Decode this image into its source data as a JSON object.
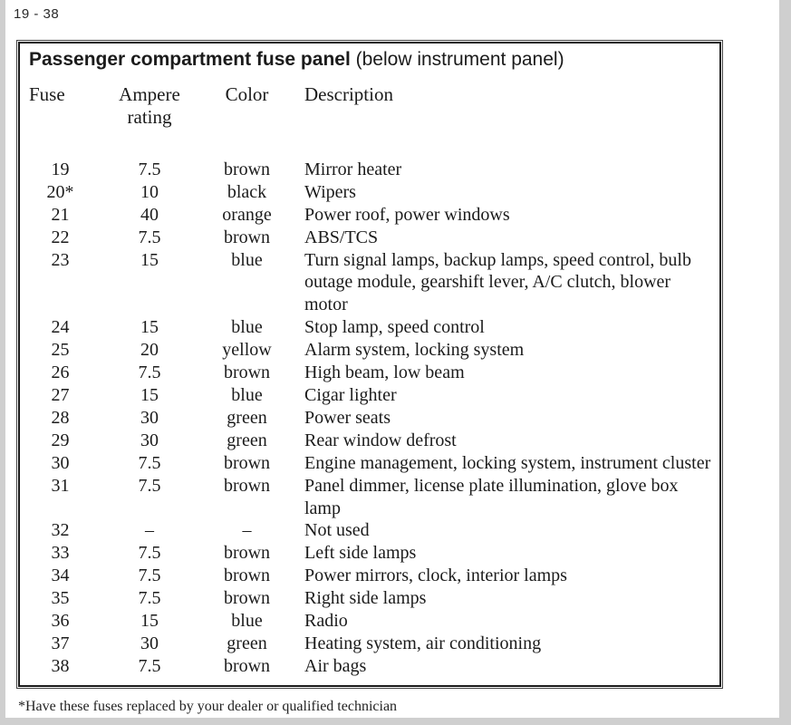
{
  "page": {
    "number_label": "19 - 38",
    "footnote": "*Have these fuses replaced by your dealer or qualified technician"
  },
  "table": {
    "title_bold": "Passenger compartment fuse panel",
    "title_rest": " (below instrument panel)",
    "columns": [
      "Fuse",
      "Ampere rating",
      "Color",
      "Description"
    ],
    "rows": [
      {
        "fuse": "19",
        "ampere": "7.5",
        "color": "brown",
        "description": "Mirror heater"
      },
      {
        "fuse": "20*",
        "ampere": "10",
        "color": "black",
        "description": "Wipers"
      },
      {
        "fuse": "21",
        "ampere": "40",
        "color": "orange",
        "description": "Power roof, power windows"
      },
      {
        "fuse": "22",
        "ampere": "7.5",
        "color": "brown",
        "description": "ABS/TCS"
      },
      {
        "fuse": "23",
        "ampere": "15",
        "color": "blue",
        "description": "Turn signal lamps, backup lamps, speed control, bulb outage module, gearshift lever, A/C clutch, blower motor"
      },
      {
        "fuse": "24",
        "ampere": "15",
        "color": "blue",
        "description": "Stop lamp, speed control"
      },
      {
        "fuse": "25",
        "ampere": "20",
        "color": "yellow",
        "description": "Alarm system, locking system"
      },
      {
        "fuse": "26",
        "ampere": "7.5",
        "color": "brown",
        "description": "High beam, low beam"
      },
      {
        "fuse": "27",
        "ampere": "15",
        "color": "blue",
        "description": "Cigar lighter"
      },
      {
        "fuse": "28",
        "ampere": "30",
        "color": "green",
        "description": "Power seats"
      },
      {
        "fuse": "29",
        "ampere": "30",
        "color": "green",
        "description": "Rear window defrost"
      },
      {
        "fuse": "30",
        "ampere": "7.5",
        "color": "brown",
        "description": "Engine management, locking system, instrument cluster"
      },
      {
        "fuse": "31",
        "ampere": "7.5",
        "color": "brown",
        "description": "Panel dimmer, license plate illumination, glove box lamp"
      },
      {
        "fuse": "32",
        "ampere": "–",
        "color": "–",
        "description": "Not used"
      },
      {
        "fuse": "33",
        "ampere": "7.5",
        "color": "brown",
        "description": "Left side lamps"
      },
      {
        "fuse": "34",
        "ampere": "7.5",
        "color": "brown",
        "description": "Power mirrors, clock, interior lamps"
      },
      {
        "fuse": "35",
        "ampere": "7.5",
        "color": "brown",
        "description": "Right side lamps"
      },
      {
        "fuse": "36",
        "ampere": "15",
        "color": "blue",
        "description": "Radio"
      },
      {
        "fuse": "37",
        "ampere": "30",
        "color": "green",
        "description": "Heating system, air conditioning"
      },
      {
        "fuse": "38",
        "ampere": "7.5",
        "color": "brown",
        "description": "Air bags"
      }
    ]
  }
}
